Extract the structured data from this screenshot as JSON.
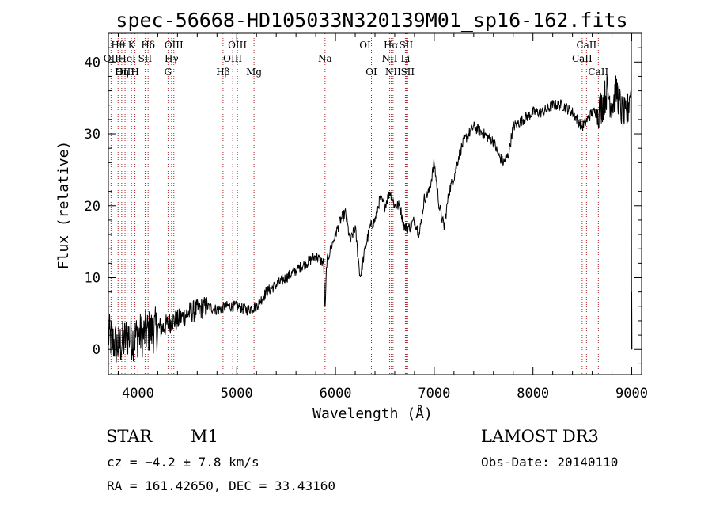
{
  "chart_data": {
    "type": "line",
    "title": "spec-56668-HD105033N320139M01_sp16-162.fits",
    "xlabel": "Wavelength (Å)",
    "ylabel": "Flux (relative)",
    "xlim": [
      3700,
      9100
    ],
    "ylim": [
      -3.5,
      44
    ],
    "xticks": [
      4000,
      5000,
      6000,
      7000,
      8000,
      9000
    ],
    "yticks": [
      0,
      10,
      20,
      30,
      40
    ],
    "grid": false,
    "spectrum_anchor_points": {
      "x": [
        3700,
        3750,
        3800,
        3850,
        3900,
        3950,
        4000,
        4050,
        4100,
        4150,
        4200,
        4250,
        4300,
        4350,
        4400,
        4500,
        4600,
        4700,
        4800,
        4900,
        5000,
        5100,
        5200,
        5300,
        5400,
        5500,
        5600,
        5700,
        5800,
        5880,
        5895,
        5910,
        5950,
        6000,
        6050,
        6100,
        6150,
        6200,
        6250,
        6300,
        6350,
        6400,
        6450,
        6500,
        6550,
        6600,
        6650,
        6700,
        6750,
        6800,
        6850,
        6900,
        6950,
        7000,
        7050,
        7100,
        7150,
        7200,
        7250,
        7300,
        7400,
        7500,
        7600,
        7650,
        7700,
        7750,
        7800,
        7900,
        8000,
        8100,
        8200,
        8300,
        8400,
        8500,
        8550,
        8600,
        8650,
        8700,
        8750,
        8800,
        8850,
        8900,
        8950,
        9000
      ],
      "y": [
        2,
        1,
        0.5,
        1,
        2,
        1.5,
        2,
        2,
        2.5,
        2.5,
        3,
        3,
        3.5,
        4,
        4,
        5,
        5.5,
        6,
        5.5,
        6,
        6,
        5.5,
        6,
        8,
        9,
        10,
        11,
        12,
        13,
        12,
        5,
        12,
        14,
        16,
        18,
        19,
        15,
        17,
        10,
        14,
        17,
        18,
        21,
        20,
        22,
        20,
        20,
        17,
        17,
        18,
        16,
        21,
        22,
        26,
        20,
        17,
        22,
        24,
        27,
        29,
        31,
        30,
        29,
        27,
        26,
        27,
        31,
        32,
        33,
        33,
        34,
        34,
        33,
        31,
        32,
        33,
        33,
        34,
        36,
        34,
        36,
        33,
        32,
        38
      ]
    },
    "emission_lines": [
      {
        "name": "Hθ",
        "wavelength": 3798,
        "row": 0
      },
      {
        "name": "OII",
        "wavelength": 3727,
        "row": 1
      },
      {
        "name": "OIII",
        "wavelength": 3869,
        "row": 2
      },
      {
        "name": "Hη",
        "wavelength": 3835,
        "row": 2
      },
      {
        "name": "K",
        "wavelength": 3934,
        "row": 0
      },
      {
        "name": "HeI",
        "wavelength": 3889,
        "row": 1
      },
      {
        "name": "SII",
        "wavelength": 4072,
        "row": 1
      },
      {
        "name": "H",
        "wavelength": 3969,
        "row": 2
      },
      {
        "name": "Hδ",
        "wavelength": 4102,
        "row": 0
      },
      {
        "name": "OIII",
        "wavelength": 4363,
        "row": 0
      },
      {
        "name": "Hγ",
        "wavelength": 4340,
        "row": 1
      },
      {
        "name": "G",
        "wavelength": 4304,
        "row": 2
      },
      {
        "name": "Hβ",
        "wavelength": 4861,
        "row": 2
      },
      {
        "name": "OIII",
        "wavelength": 5007,
        "row": 0
      },
      {
        "name": "OIII",
        "wavelength": 4959,
        "row": 1
      },
      {
        "name": "Mg",
        "wavelength": 5175,
        "row": 2
      },
      {
        "name": "Na",
        "wavelength": 5894,
        "row": 1
      },
      {
        "name": "OI",
        "wavelength": 6300,
        "row": 0
      },
      {
        "name": "OI",
        "wavelength": 6364,
        "row": 2
      },
      {
        "name": "Hα",
        "wavelength": 6563,
        "row": 0
      },
      {
        "name": "SII",
        "wavelength": 6716,
        "row": 0
      },
      {
        "name": "NII",
        "wavelength": 6548,
        "row": 1
      },
      {
        "name": "Li",
        "wavelength": 6708,
        "row": 1
      },
      {
        "name": "NII",
        "wavelength": 6583,
        "row": 2
      },
      {
        "name": "SII",
        "wavelength": 6731,
        "row": 2
      },
      {
        "name": "CaII",
        "wavelength": 8542,
        "row": 0
      },
      {
        "name": "CaII",
        "wavelength": 8498,
        "row": 1
      },
      {
        "name": "CaII",
        "wavelength": 8662,
        "row": 2
      }
    ]
  },
  "info": {
    "class_label": "STAR",
    "subclass": "M1",
    "survey": "LAMOST DR3",
    "cz_line": "cz = −4.2 ± 7.8 km/s",
    "obs_date": "Obs-Date: 20140110",
    "coords": "RA = 161.42650, DEC =  33.43160"
  },
  "colors": {
    "spectrum": "#000000",
    "line_marker": "#b22222",
    "axes": "#000000"
  }
}
